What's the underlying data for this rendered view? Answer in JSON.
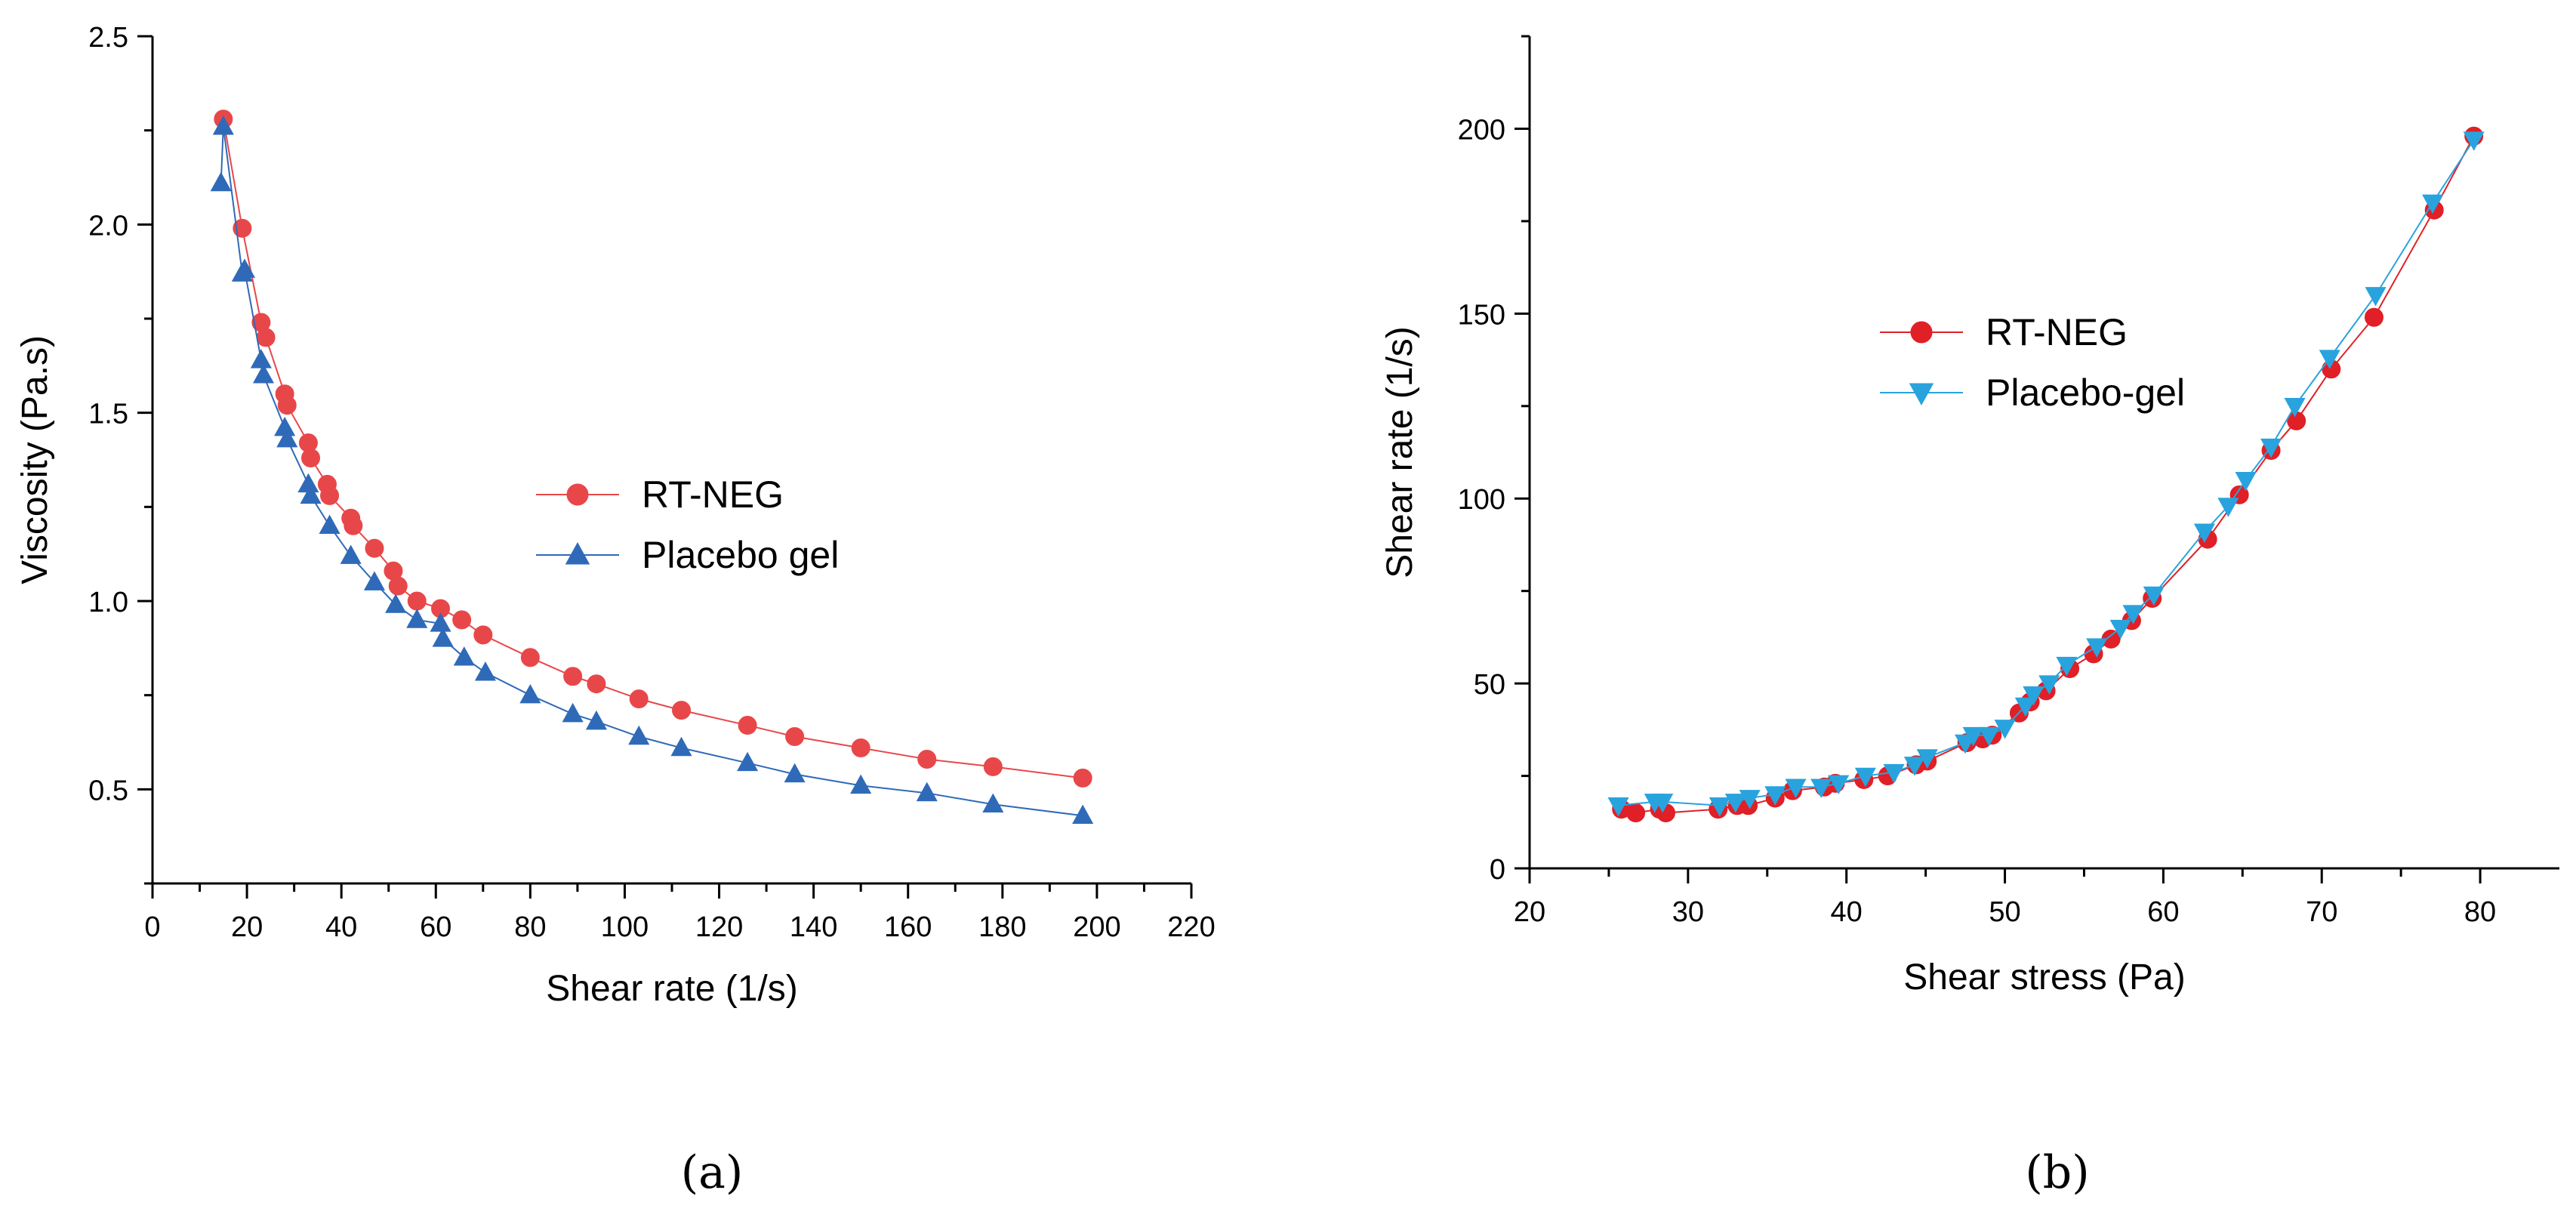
{
  "panels": [
    {
      "caption": "(a)",
      "chart_data": {
        "type": "line",
        "title": "",
        "xlabel": "Shear rate (1/s)",
        "ylabel": "Viscosity (Pa.s)",
        "xlim": [
          0,
          220
        ],
        "ylim": [
          0.25,
          2.5
        ],
        "xticks": [
          0,
          20,
          40,
          60,
          80,
          100,
          120,
          140,
          160,
          180,
          200,
          220
        ],
        "xtick_labels": [
          "0",
          "20",
          "40",
          "60",
          "80",
          "100",
          "120",
          "140",
          "160",
          "180",
          "200",
          "220"
        ],
        "yticks": [
          0.5,
          1.0,
          1.5,
          2.0,
          2.5
        ],
        "ytick_labels": [
          "0.5",
          "1.0",
          "1.5",
          "2.0",
          "2.5"
        ],
        "legend_position": "center-right",
        "series": [
          {
            "name": "RT-NEG",
            "color": "#e8474a",
            "marker": "circle",
            "x": [
              15,
              19,
              23,
              24,
              28,
              28.5,
              33,
              33.5,
              37,
              37.5,
              42,
              42.5,
              47,
              51,
              52,
              56,
              61,
              65.5,
              70,
              80,
              89,
              94,
              103,
              112,
              126,
              136,
              150,
              164,
              178,
              197
            ],
            "y": [
              2.28,
              1.99,
              1.74,
              1.7,
              1.55,
              1.52,
              1.42,
              1.38,
              1.31,
              1.28,
              1.22,
              1.2,
              1.14,
              1.08,
              1.04,
              1.0,
              0.98,
              0.95,
              0.91,
              0.85,
              0.8,
              0.78,
              0.74,
              0.71,
              0.67,
              0.64,
              0.61,
              0.58,
              0.56,
              0.53
            ]
          },
          {
            "name": "Placebo gel",
            "color": "#2f6ab8",
            "marker": "triangle-up",
            "x": [
              14.5,
              15,
              19,
              19.5,
              23,
              23.5,
              28,
              28.5,
              33,
              33.5,
              37.5,
              42,
              47,
              51.5,
              56,
              61,
              61.5,
              66,
              70.5,
              80,
              89,
              94,
              103,
              112,
              126,
              136,
              150,
              164,
              178,
              197
            ],
            "y": [
              2.11,
              2.26,
              1.87,
              1.88,
              1.64,
              1.6,
              1.46,
              1.43,
              1.31,
              1.28,
              1.2,
              1.12,
              1.05,
              0.99,
              0.95,
              0.94,
              0.9,
              0.85,
              0.81,
              0.75,
              0.7,
              0.68,
              0.64,
              0.61,
              0.57,
              0.54,
              0.51,
              0.49,
              0.46,
              0.43
            ]
          }
        ]
      }
    },
    {
      "caption": "(b)",
      "chart_data": {
        "type": "line",
        "title": "",
        "xlabel": "Shear stress (Pa)",
        "ylabel": "Shear rate (1/s)",
        "xlim": [
          20,
          85
        ],
        "ylim": [
          0,
          225
        ],
        "xticks": [
          20,
          30,
          40,
          50,
          60,
          70,
          80
        ],
        "xtick_labels": [
          "20",
          "30",
          "40",
          "50",
          "60",
          "70",
          "80"
        ],
        "yticks": [
          0,
          50,
          100,
          150,
          200
        ],
        "ytick_labels": [
          "0",
          "50",
          "100",
          "150",
          "200"
        ],
        "legend_position": "upper-center",
        "series": [
          {
            "name": "RT-NEG",
            "color": "#e01f26",
            "marker": "circle",
            "x": [
              25.8,
              26.7,
              28.2,
              28.6,
              31.9,
              33.1,
              33.8,
              35.5,
              36.6,
              38.6,
              39.3,
              41.1,
              42.6,
              44.4,
              45.1,
              47.6,
              48.6,
              49.2,
              50.9,
              51.6,
              52.6,
              54.1,
              55.6,
              56.7,
              58.0,
              59.3,
              62.8,
              64.8,
              66.8,
              68.4,
              70.6,
              73.3,
              77.1,
              79.6
            ],
            "y": [
              16,
              15,
              16,
              15,
              16,
              17,
              17,
              19,
              21,
              22,
              23,
              24,
              25,
              28,
              29,
              34,
              35,
              36,
              42,
              45,
              48,
              54,
              58,
              62,
              67,
              73,
              89,
              101,
              113,
              121,
              135,
              149,
              178,
              198
            ]
          },
          {
            "name": "Placebo-gel",
            "color": "#29a3dd",
            "marker": "triangle-down",
            "x": [
              25.6,
              27.9,
              28.4,
              32.0,
              33.0,
              33.9,
              35.5,
              36.8,
              38.4,
              39.5,
              41.2,
              43.0,
              44.3,
              45.1,
              47.5,
              48.0,
              49.0,
              50.0,
              51.3,
              51.8,
              52.8,
              53.9,
              55.8,
              57.3,
              58.1,
              59.4,
              62.6,
              64.1,
              65.2,
              66.8,
              68.3,
              70.5,
              73.4,
              77.0,
              79.6
            ],
            "y": [
              17,
              18,
              18,
              17,
              18,
              19,
              20,
              22,
              22,
              23,
              25,
              26,
              28,
              30,
              34,
              36,
              36,
              38,
              44,
              47,
              50,
              55,
              60,
              65,
              69,
              74,
              91,
              98,
              105,
              114,
              125,
              138,
              155,
              180,
              197
            ]
          }
        ]
      }
    }
  ]
}
